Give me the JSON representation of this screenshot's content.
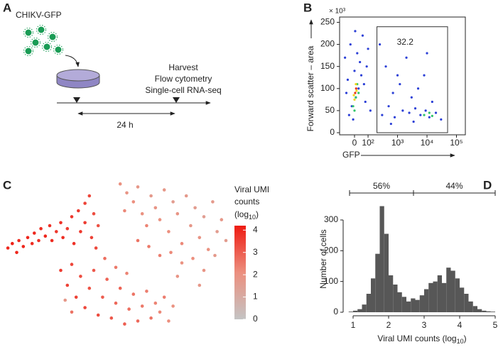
{
  "panel_labels": [
    "A",
    "B",
    "C",
    "D"
  ],
  "diagram": {
    "virus_label": "CHIKV-GFP",
    "steps": [
      "Harvest",
      "Flow cytometry",
      "Single-cell RNA-seq"
    ],
    "duration": "24 h"
  },
  "chart_data": [
    {
      "type": "flow",
      "ylabel": "Forward scatter – area",
      "xlabel": "GFP",
      "y_multiplier": "× 10³",
      "xscale": "biexponential",
      "xlim": [
        -110,
        200000
      ],
      "ylim": [
        0,
        262
      ],
      "xticks": [
        {
          "value": 0,
          "label": "0"
        },
        {
          "value": 100,
          "label": "10²"
        },
        {
          "value": 1000,
          "label": "10³"
        },
        {
          "value": 10000,
          "label": "10⁴"
        },
        {
          "value": 100000,
          "label": "10⁵"
        }
      ],
      "yticks": [
        0,
        50,
        100,
        150,
        200,
        250
      ],
      "gate": {
        "label": "32.2",
        "x": [
          200,
          50000
        ],
        "y": [
          0,
          240
        ]
      },
      "layers": [
        {
          "color": "#2b3fd6",
          "x": [
            -40,
            -20,
            10,
            30,
            -50,
            0,
            40,
            20,
            -30,
            60,
            5,
            80,
            -60,
            50,
            90,
            120,
            -10,
            70,
            100,
            -70,
            300,
            500,
            800,
            1500,
            2500,
            4000,
            6000,
            9000,
            12000,
            20000,
            700,
            1200,
            3000,
            5000,
            400,
            2000,
            8000,
            15000,
            600,
            30000,
            250,
            10000,
            1000,
            3500
          ],
          "y": [
            40,
            60,
            80,
            100,
            120,
            140,
            160,
            180,
            200,
            220,
            230,
            70,
            90,
            130,
            150,
            50,
            30,
            110,
            190,
            170,
            40,
            60,
            35,
            50,
            45,
            55,
            40,
            50,
            35,
            45,
            90,
            110,
            80,
            100,
            150,
            170,
            130,
            70,
            20,
            30,
            200,
            180,
            130,
            25
          ]
        },
        {
          "color": "#2fc46a",
          "x": [
            -10,
            10,
            20,
            0,
            30,
            8000,
            12000,
            15000
          ],
          "y": [
            60,
            80,
            110,
            50,
            90,
            40,
            45,
            38
          ]
        },
        {
          "color": "#f2d21b",
          "x": [
            0,
            15,
            10,
            -5
          ],
          "y": [
            75,
            95,
            110,
            85
          ]
        },
        {
          "color": "#e8321e",
          "x": [
            5,
            12
          ],
          "y": [
            90,
            100
          ]
        }
      ]
    },
    {
      "type": "umap",
      "xlim": [
        0,
        100
      ],
      "ylim": [
        0,
        100
      ],
      "x": [
        1,
        3,
        5,
        6,
        8,
        10,
        12,
        13,
        15,
        16,
        18,
        20,
        21,
        23,
        25,
        26,
        28,
        30,
        31,
        33,
        34,
        36,
        38,
        36,
        40,
        39,
        42,
        41,
        25,
        28,
        30,
        32,
        34,
        36,
        38,
        40,
        42,
        44,
        46,
        48,
        50,
        52,
        54,
        56,
        58,
        60,
        62,
        64,
        66,
        68,
        70,
        72,
        74,
        76,
        30,
        27,
        45,
        50,
        55,
        52,
        55,
        58,
        54,
        60,
        62,
        64,
        66,
        68,
        70,
        72,
        74,
        76,
        78,
        80,
        82,
        84,
        86,
        88,
        90,
        92,
        94,
        96,
        98,
        85,
        90,
        95,
        80,
        75,
        70,
        65,
        60,
        88,
        100,
        78
      ],
      "y": [
        55,
        58,
        52,
        60,
        56,
        62,
        58,
        65,
        60,
        68,
        63,
        70,
        60,
        66,
        72,
        62,
        68,
        76,
        58,
        80,
        66,
        85,
        90,
        72,
        78,
        62,
        70,
        55,
        40,
        30,
        44,
        22,
        36,
        15,
        28,
        40,
        10,
        22,
        34,
        8,
        18,
        28,
        4,
        14,
        24,
        6,
        16,
        26,
        8,
        18,
        12,
        22,
        6,
        16,
        12,
        20,
        48,
        42,
        38,
        98,
        92,
        86,
        80,
        96,
        78,
        70,
        90,
        82,
        74,
        94,
        66,
        86,
        78,
        58,
        90,
        70,
        82,
        62,
        76,
        54,
        86,
        66,
        74,
        48,
        40,
        50,
        45,
        52,
        50,
        56,
        60,
        30,
        60,
        36
      ],
      "values": [
        4.0,
        4.1,
        4.0,
        3.9,
        4.0,
        4.0,
        3.9,
        4.0,
        3.8,
        3.9,
        4.0,
        3.8,
        3.9,
        3.7,
        3.8,
        3.9,
        3.6,
        3.7,
        3.8,
        3.6,
        3.7,
        3.5,
        3.4,
        3.6,
        3.3,
        3.5,
        3.2,
        3.4,
        3.6,
        3.5,
        3.4,
        3.5,
        3.3,
        3.4,
        3.2,
        3.1,
        3.3,
        3.0,
        2.9,
        3.1,
        2.8,
        2.9,
        3.0,
        2.7,
        2.6,
        2.8,
        2.5,
        2.4,
        2.6,
        2.3,
        2.2,
        2.4,
        2.1,
        2.0,
        2.6,
        1.8,
        2.7,
        2.5,
        2.3,
        2.0,
        1.9,
        2.1,
        2.2,
        1.8,
        2.0,
        2.3,
        1.7,
        1.9,
        2.0,
        1.8,
        2.1,
        1.6,
        1.9,
        2.2,
        1.7,
        1.8,
        1.6,
        1.9,
        1.5,
        2.0,
        1.7,
        1.6,
        1.8,
        2.1,
        1.9,
        1.7,
        2.0,
        2.2,
        2.4,
        2.5,
        2.6,
        1.8,
        1.6,
        1.9
      ],
      "colorbar": {
        "title": [
          "Viral UMI",
          "counts"
        ],
        "title_log": "(log",
        "title_sub": "10",
        "title_end": ")",
        "clim": [
          0,
          4.2
        ],
        "ticks": [
          0,
          1,
          2,
          3,
          4
        ],
        "colors": [
          "#c4c4c4",
          "#ec8f7e",
          "#ee1b12"
        ]
      }
    },
    {
      "type": "histogram",
      "ylabel": "Number of cells",
      "xlabel": "Viral UMI counts (log",
      "xlabel_sub": "10",
      "xlabel_end": ")",
      "color": "#575757",
      "xlim": [
        0.8,
        5.1
      ],
      "ylim": [
        0,
        360
      ],
      "xticks": [
        1,
        2,
        3,
        4,
        5
      ],
      "yticks": [
        0,
        100,
        200,
        300
      ],
      "bins": [
        0.875,
        1.0,
        1.125,
        1.25,
        1.375,
        1.5,
        1.625,
        1.75,
        1.875,
        2.0,
        2.125,
        2.25,
        2.375,
        2.5,
        2.625,
        2.75,
        2.875,
        3.0,
        3.125,
        3.25,
        3.375,
        3.5,
        3.625,
        3.75,
        3.875,
        4.0,
        4.125,
        4.25,
        4.375,
        4.5,
        4.625,
        4.75,
        4.875,
        5.0
      ],
      "values": [
        2,
        5,
        10,
        25,
        60,
        110,
        190,
        345,
        255,
        120,
        90,
        65,
        50,
        35,
        45,
        40,
        55,
        75,
        95,
        100,
        120,
        95,
        145,
        135,
        110,
        80,
        60,
        35,
        20,
        10,
        5,
        3,
        2
      ],
      "brackets": [
        {
          "label": "56%",
          "range": [
            0.9,
            2.7
          ]
        },
        {
          "label": "44%",
          "range": [
            2.7,
            5.0
          ]
        }
      ]
    }
  ]
}
